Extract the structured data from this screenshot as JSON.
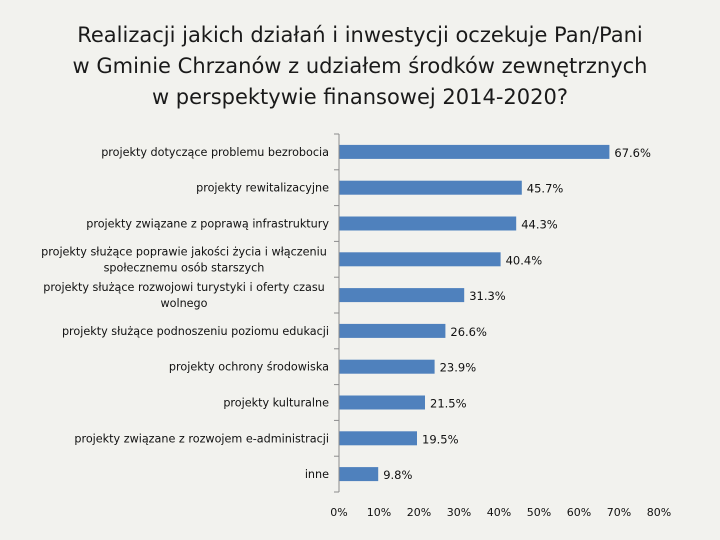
{
  "title_lines": [
    "Realizacji jakich działań i inwestycji oczekuje Pan/Pani",
    "w Gminie Chrzanów z udziałem środków zewnętrznych",
    "w perspektywie finansowej 2014-2020?"
  ],
  "colors": {
    "bar": "#4f81bd",
    "axis": "#8c8c8c",
    "background": "#f2f2ee"
  },
  "chart_data": {
    "type": "bar",
    "orientation": "horizontal",
    "categories": [
      [
        "projekty dotyczące problemu bezrobocia"
      ],
      [
        "projekty rewitalizacyjne"
      ],
      [
        "projekty związane z poprawą infrastruktury"
      ],
      [
        "projekty służące poprawie jakości życia i włączeniu",
        "społecznemu osób starszych"
      ],
      [
        "projekty służące rozwojowi turystyki i oferty czasu",
        "wolnego"
      ],
      [
        "projekty służące podnoszeniu poziomu edukacji"
      ],
      [
        "projekty ochrony środowiska"
      ],
      [
        "projekty kulturalne"
      ],
      [
        "projekty związane z rozwojem e-administracji"
      ],
      [
        "inne"
      ]
    ],
    "values": [
      67.6,
      45.7,
      44.3,
      40.4,
      31.3,
      26.6,
      23.9,
      21.5,
      19.5,
      9.8
    ],
    "value_labels": [
      "67.6%",
      "45.7%",
      "44.3%",
      "40.4%",
      "31.3%",
      "26.6%",
      "23.9%",
      "21.5%",
      "19.5%",
      "9.8%"
    ],
    "xlim": [
      0,
      80
    ],
    "xticks": [
      0,
      10,
      20,
      30,
      40,
      50,
      60,
      70,
      80
    ],
    "xtick_labels": [
      "0%",
      "10%",
      "20%",
      "30%",
      "40%",
      "50%",
      "60%",
      "70%",
      "80%"
    ],
    "legend": "none",
    "grid": false
  }
}
